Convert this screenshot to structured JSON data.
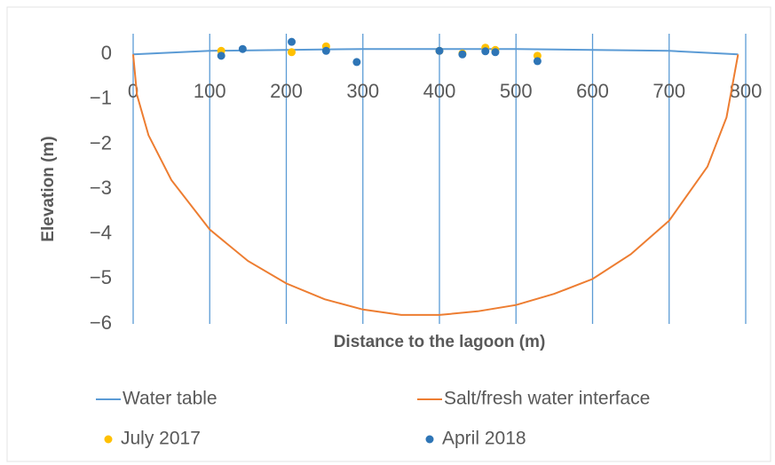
{
  "chart_data": {
    "type": "line",
    "x_label": "Distance to the lagoon (m)",
    "y_label": "Elevation (m)",
    "xlim": [
      0,
      800
    ],
    "ylim": [
      -6,
      0.5
    ],
    "xticks": [
      0,
      100,
      200,
      300,
      400,
      500,
      600,
      700,
      800
    ],
    "yticks": [
      0,
      {
        "value": -1,
        "label": "−1"
      },
      {
        "value": -2,
        "label": "−2"
      },
      {
        "value": -3,
        "label": "−3"
      },
      {
        "value": -4,
        "label": "−4"
      },
      {
        "value": -5,
        "label": "−5"
      },
      {
        "value": -6,
        "label": "−6"
      }
    ],
    "grid": "x",
    "legend": "bottom",
    "series": [
      {
        "name": "Water table",
        "type": "line",
        "color": "#5b9bd5",
        "x": [
          0,
          100,
          200,
          300,
          400,
          500,
          600,
          700,
          790
        ],
        "values": [
          0,
          0.08,
          0.1,
          0.12,
          0.12,
          0.12,
          0.1,
          0.08,
          0
        ]
      },
      {
        "name": "Salt/fresh water interface",
        "type": "line",
        "color": "#ed7d31",
        "x": [
          0,
          5,
          20,
          50,
          100,
          150,
          200,
          250,
          300,
          350,
          400,
          450,
          500,
          550,
          600,
          650,
          700,
          750,
          775,
          790
        ],
        "values": [
          0,
          -0.9,
          -1.8,
          -2.8,
          -3.9,
          -4.6,
          -5.1,
          -5.45,
          -5.68,
          -5.8,
          -5.8,
          -5.72,
          -5.58,
          -5.33,
          -5.0,
          -4.45,
          -3.7,
          -2.5,
          -1.4,
          0
        ]
      },
      {
        "name": "July 2017",
        "type": "scatter",
        "color": "#ffc000",
        "x": [
          115,
          207,
          252,
          400,
          430,
          460,
          473,
          528
        ],
        "values": [
          0.08,
          0.05,
          0.18,
          0.08,
          0.02,
          0.15,
          0.1,
          -0.03
        ]
      },
      {
        "name": "April 2018",
        "type": "scatter",
        "color": "#2e75b6",
        "x": [
          115,
          143,
          207,
          252,
          292,
          400,
          430,
          460,
          473,
          528
        ],
        "values": [
          -0.03,
          0.12,
          0.28,
          0.08,
          -0.17,
          0.08,
          0,
          0.07,
          0.05,
          -0.15
        ]
      }
    ]
  }
}
